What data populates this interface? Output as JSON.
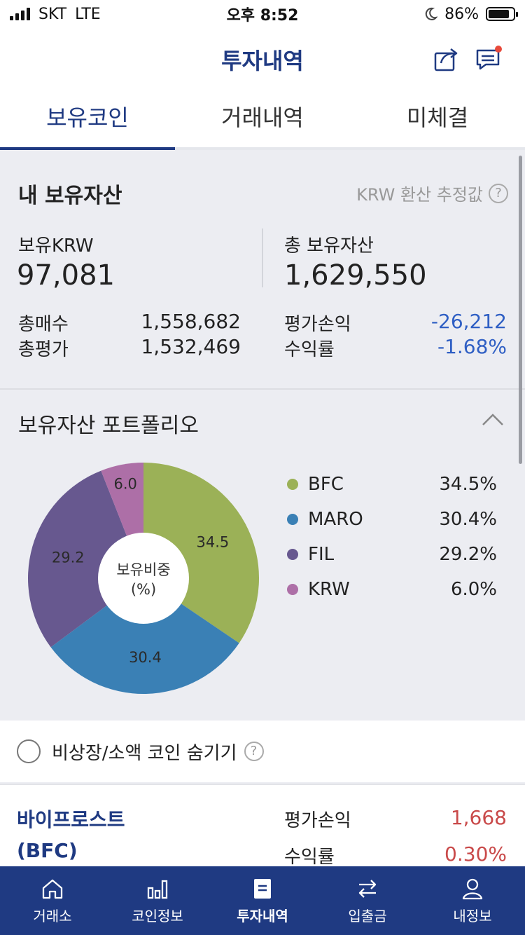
{
  "status": {
    "carrier": "SKT",
    "network": "LTE",
    "time": "오후 8:52",
    "battery_pct": "86%",
    "battery_level": 0.86
  },
  "header": {
    "title": "투자내역",
    "share_icon": "share-icon",
    "chat_icon": "chat-icon",
    "notification_color": "#e84a3b"
  },
  "tabs": [
    {
      "label": "보유코인",
      "active": true
    },
    {
      "label": "거래내역",
      "active": false
    },
    {
      "label": "미체결",
      "active": false
    }
  ],
  "assets": {
    "title": "내 보유자산",
    "note": "KRW 환산 추정값",
    "krw_label": "보유KRW",
    "krw_value": "97,081",
    "total_label": "총 보유자산",
    "total_value": "1,629,550",
    "buy_label": "총매수",
    "buy_value": "1,558,682",
    "eval_label": "총평가",
    "eval_value": "1,532,469",
    "pl_label": "평가손익",
    "pl_value": "-26,212",
    "return_label": "수익률",
    "return_value": "-1.68%"
  },
  "portfolio": {
    "title": "보유자산 포트폴리오",
    "center_line1": "보유비중",
    "center_line2": "(%)",
    "items": [
      {
        "name": "BFC",
        "pct_label": "34.5%",
        "slice_label": "34.5",
        "value": 34.5,
        "color": "#9bb157"
      },
      {
        "name": "MARO",
        "pct_label": "30.4%",
        "slice_label": "30.4",
        "value": 30.4,
        "color": "#3a80b5"
      },
      {
        "name": "FIL",
        "pct_label": "29.2%",
        "slice_label": "29.2",
        "value": 29.2,
        "color": "#67588f"
      },
      {
        "name": "KRW",
        "pct_label": "6.0%",
        "slice_label": "6.0",
        "value": 6.0,
        "color": "#ad6fa7"
      }
    ]
  },
  "hide_small": {
    "label": "비상장/소액 코인 숨기기"
  },
  "coin": {
    "name_line1": "바이프로스트",
    "name_line2": "(BFC)",
    "pl_label": "평가손익",
    "pl_value": "1,668",
    "return_label": "수익률",
    "return_value": "0.30%"
  },
  "nav": [
    {
      "label": "거래소",
      "icon": "home-icon",
      "active": false
    },
    {
      "label": "코인정보",
      "icon": "bar-chart-icon",
      "active": false
    },
    {
      "label": "투자내역",
      "icon": "document-icon",
      "active": true
    },
    {
      "label": "입출금",
      "icon": "transfer-icon",
      "active": false
    },
    {
      "label": "내정보",
      "icon": "user-icon",
      "active": false
    }
  ]
}
